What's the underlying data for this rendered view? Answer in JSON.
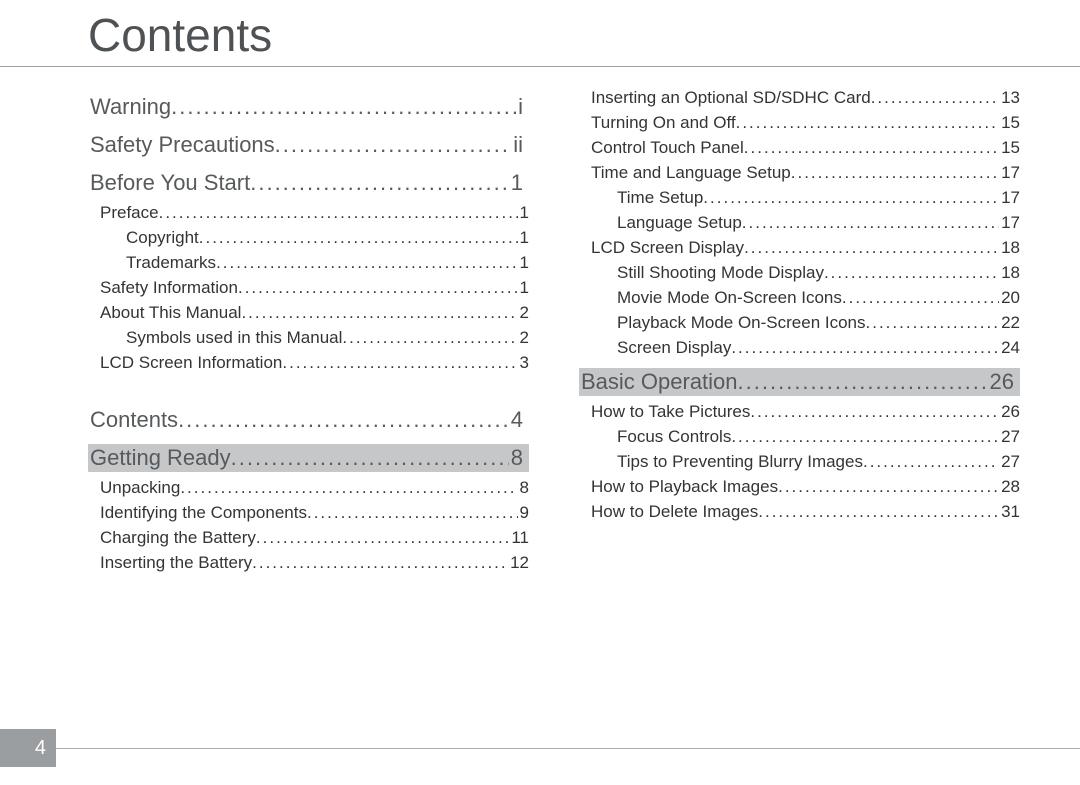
{
  "title": "Contents",
  "pageNumber": "4",
  "colors": {
    "titleColor": "#4f5254",
    "textColor": "#323436",
    "highlightBg": "#c6c7c9",
    "ruleColor": "#9da1a4",
    "tabBg": "#9a9ea1"
  },
  "typography": {
    "titleFontSize": 46,
    "sectionFontSize": 22,
    "entryFontSize": 17
  },
  "leftColumn": [
    {
      "level": "section",
      "highlight": false,
      "label": "Warning",
      "page": "i"
    },
    {
      "level": "section",
      "highlight": false,
      "label": "Safety Precautions",
      "page": "ii"
    },
    {
      "level": "section",
      "highlight": false,
      "label": "Before You Start",
      "page": "1"
    },
    {
      "level": "1",
      "label": "Preface",
      "page": "1"
    },
    {
      "level": "2",
      "label": "Copyright",
      "page": "1"
    },
    {
      "level": "2",
      "label": "Trademarks",
      "page": "1"
    },
    {
      "level": "1",
      "label": "Safety Information",
      "page": "1"
    },
    {
      "level": "1",
      "label": "About This Manual",
      "page": "2"
    },
    {
      "level": "2",
      "label": "Symbols used in this Manual",
      "page": "2"
    },
    {
      "level": "1",
      "label": "LCD Screen Information",
      "page": "3"
    },
    {
      "level": "spacer"
    },
    {
      "level": "section",
      "highlight": false,
      "label": "Contents",
      "page": "4"
    },
    {
      "level": "section",
      "highlight": true,
      "label": "Getting Ready",
      "page": "8"
    },
    {
      "level": "1",
      "label": "Unpacking",
      "page": "8"
    },
    {
      "level": "1",
      "label": "Identifying the Components",
      "page": "9"
    },
    {
      "level": "1",
      "label": "Charging the Battery",
      "page": "11"
    },
    {
      "level": "1",
      "label": "Inserting the Battery",
      "page": "12"
    }
  ],
  "rightColumn": [
    {
      "level": "1",
      "label": "Inserting an Optional SD/SDHC Card",
      "page": "13"
    },
    {
      "level": "1",
      "label": "Turning On and Off",
      "page": "15"
    },
    {
      "level": "1",
      "label": "Control Touch Panel",
      "page": "15"
    },
    {
      "level": "1",
      "label": "Time and Language Setup",
      "page": "17"
    },
    {
      "level": "2",
      "label": "Time Setup",
      "page": "17"
    },
    {
      "level": "2",
      "label": "Language Setup",
      "page": "17"
    },
    {
      "level": "1",
      "label": "LCD Screen Display",
      "page": "18"
    },
    {
      "level": "2",
      "label": "Still Shooting Mode Display",
      "page": "18"
    },
    {
      "level": "2",
      "label": "Movie Mode On-Screen Icons",
      "page": "20"
    },
    {
      "level": "2",
      "label": "Playback Mode On-Screen Icons",
      "page": "22"
    },
    {
      "level": "2",
      "label": "Screen Display",
      "page": "24"
    },
    {
      "level": "section",
      "highlight": true,
      "label": "Basic Operation",
      "page": "26"
    },
    {
      "level": "1",
      "label": "How to Take Pictures",
      "page": "26"
    },
    {
      "level": "2",
      "label": "Focus Controls",
      "page": "27"
    },
    {
      "level": "2",
      "label": "Tips to Preventing Blurry Images",
      "page": "27"
    },
    {
      "level": "1",
      "label": "How to Playback Images",
      "page": "28"
    },
    {
      "level": "1",
      "label": "How to Delete Images",
      "page": "31"
    }
  ]
}
